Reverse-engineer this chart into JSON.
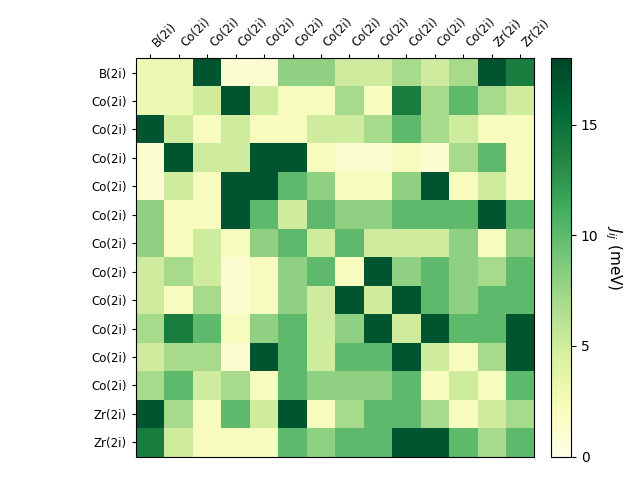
{
  "labels": [
    "B(2i)",
    "Co(2i)",
    "Co(2i)",
    "Co(2i)",
    "Co(2i)",
    "Co(2i)",
    "Co(2i)",
    "Co(2i)",
    "Co(2i)",
    "Co(2i)",
    "Co(2i)",
    "Co(2i)",
    "Zr(2i)",
    "Zr(2i)"
  ],
  "matrix": [
    [
      3,
      3,
      17,
      2,
      2,
      8,
      10,
      6,
      6,
      8,
      6,
      8,
      17,
      15
    ],
    [
      3,
      3,
      5,
      17,
      5,
      3,
      3,
      8,
      3,
      15,
      8,
      10,
      8,
      5
    ],
    [
      17,
      5,
      3,
      5,
      3,
      3,
      6,
      5,
      8,
      10,
      8,
      5,
      3,
      3
    ],
    [
      2,
      17,
      5,
      5,
      17,
      17,
      3,
      2,
      2,
      3,
      2,
      8,
      10,
      3
    ],
    [
      2,
      5,
      3,
      17,
      17,
      10,
      8,
      3,
      3,
      8,
      17,
      3,
      5,
      3
    ],
    [
      8,
      3,
      3,
      17,
      10,
      5,
      10,
      8,
      8,
      10,
      10,
      10,
      17,
      10
    ],
    [
      10,
      3,
      6,
      3,
      8,
      10,
      5,
      10,
      5,
      5,
      5,
      8,
      3,
      8
    ],
    [
      6,
      8,
      5,
      2,
      3,
      8,
      10,
      3,
      17,
      8,
      10,
      8,
      8,
      10
    ],
    [
      6,
      3,
      8,
      2,
      3,
      8,
      5,
      17,
      5,
      17,
      10,
      8,
      10,
      10
    ],
    [
      8,
      15,
      10,
      3,
      8,
      10,
      5,
      8,
      17,
      5,
      17,
      10,
      10,
      17
    ],
    [
      6,
      8,
      8,
      2,
      17,
      10,
      5,
      10,
      10,
      17,
      5,
      3,
      8,
      17
    ],
    [
      8,
      10,
      5,
      8,
      3,
      10,
      8,
      8,
      8,
      10,
      3,
      5,
      3,
      10
    ],
    [
      17,
      8,
      3,
      10,
      5,
      17,
      3,
      8,
      10,
      10,
      8,
      3,
      5,
      8
    ],
    [
      15,
      5,
      3,
      3,
      3,
      10,
      8,
      10,
      10,
      17,
      17,
      10,
      8,
      10
    ]
  ],
  "vmin": 0,
  "vmax": 18,
  "cbar_label": "$J_{ij}$ (meV)",
  "cbar_ticks": [
    0,
    5,
    10,
    15
  ],
  "figsize": [
    6.4,
    4.8
  ],
  "dpi": 100
}
